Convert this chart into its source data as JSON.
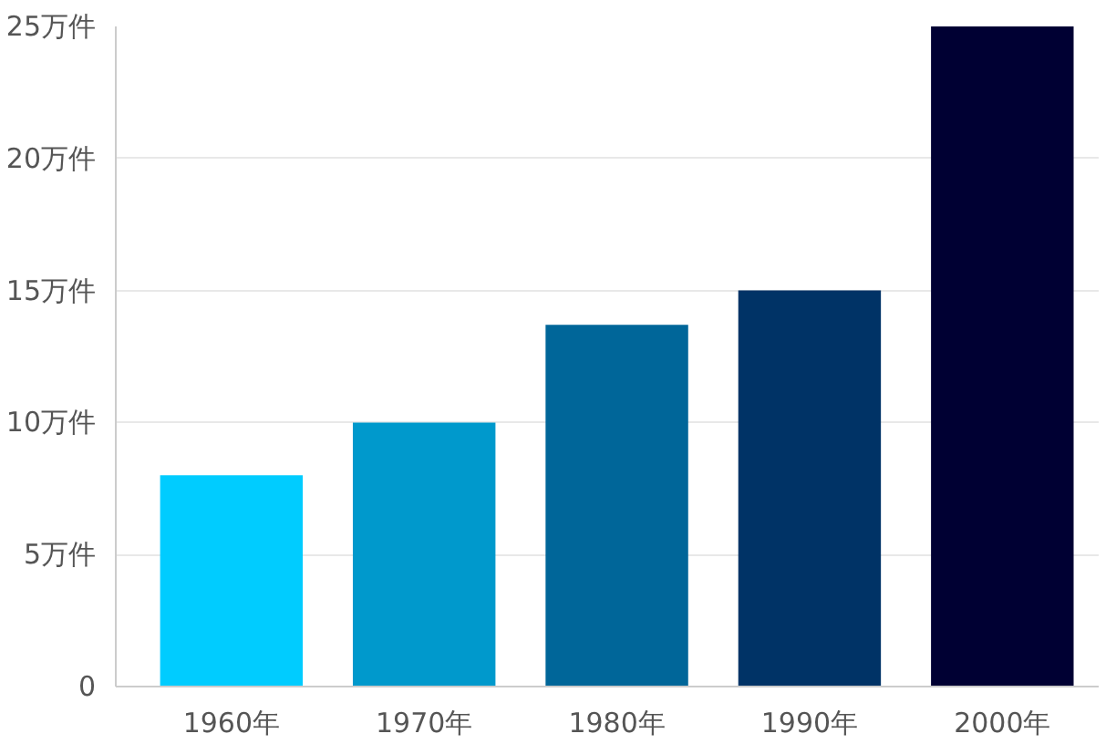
{
  "chart_data": {
    "type": "bar",
    "categories": [
      "1960年",
      "1970年",
      "1980年",
      "1990年",
      "2000年"
    ],
    "values": [
      8,
      10,
      13.7,
      15,
      25
    ],
    "colors": [
      "#00ccff",
      "#0099cc",
      "#006699",
      "#003366",
      "#000033"
    ],
    "ylim": [
      0,
      25
    ],
    "yticks": [
      0,
      {
        "value": 5,
        "label": "5万件"
      },
      {
        "value": 10,
        "label": "10万件"
      },
      {
        "value": 15,
        "label": "15万件"
      },
      {
        "value": 20,
        "label": "20万件"
      },
      {
        "value": 25,
        "label": "25万件"
      }
    ],
    "grid": "y"
  }
}
